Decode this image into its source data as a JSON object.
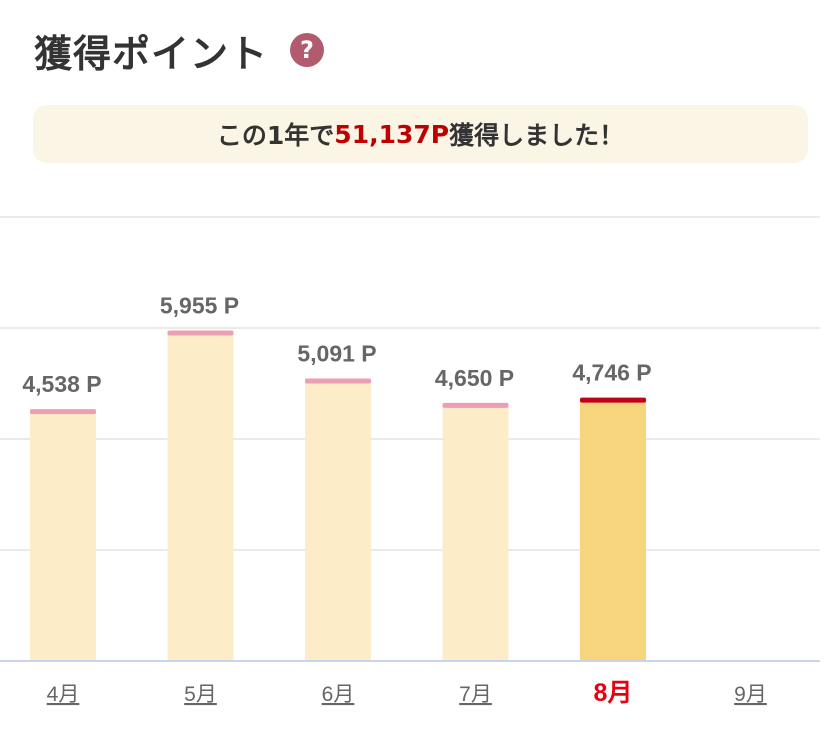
{
  "header": {
    "title": "獲得ポイント",
    "help_icon": "?"
  },
  "summary": {
    "prefix": "この1年で",
    "highlight": "51,137P",
    "suffix": "獲得しました！"
  },
  "colors": {
    "bar": "#fcedc8",
    "bar_cap": "#ec9fb2",
    "active_bar": "#f6d57c",
    "active_cap": "#c1001b",
    "grid": "#e4e4e4",
    "baseline": "#c9d3ee",
    "highlight": "#bf0000"
  },
  "chart_data": {
    "type": "bar",
    "categories": [
      "4月",
      "5月",
      "6月",
      "7月",
      "8月",
      "9月"
    ],
    "values": [
      4538,
      5955,
      5091,
      4650,
      4746,
      null
    ],
    "value_labels": [
      "4,538 P",
      "5,955 P",
      "5,091 P",
      "4,650 P",
      "4,746 P",
      ""
    ],
    "active_category": "8月",
    "ylim": [
      0,
      8000
    ],
    "grid": true,
    "xlabel": "",
    "ylabel": ""
  }
}
